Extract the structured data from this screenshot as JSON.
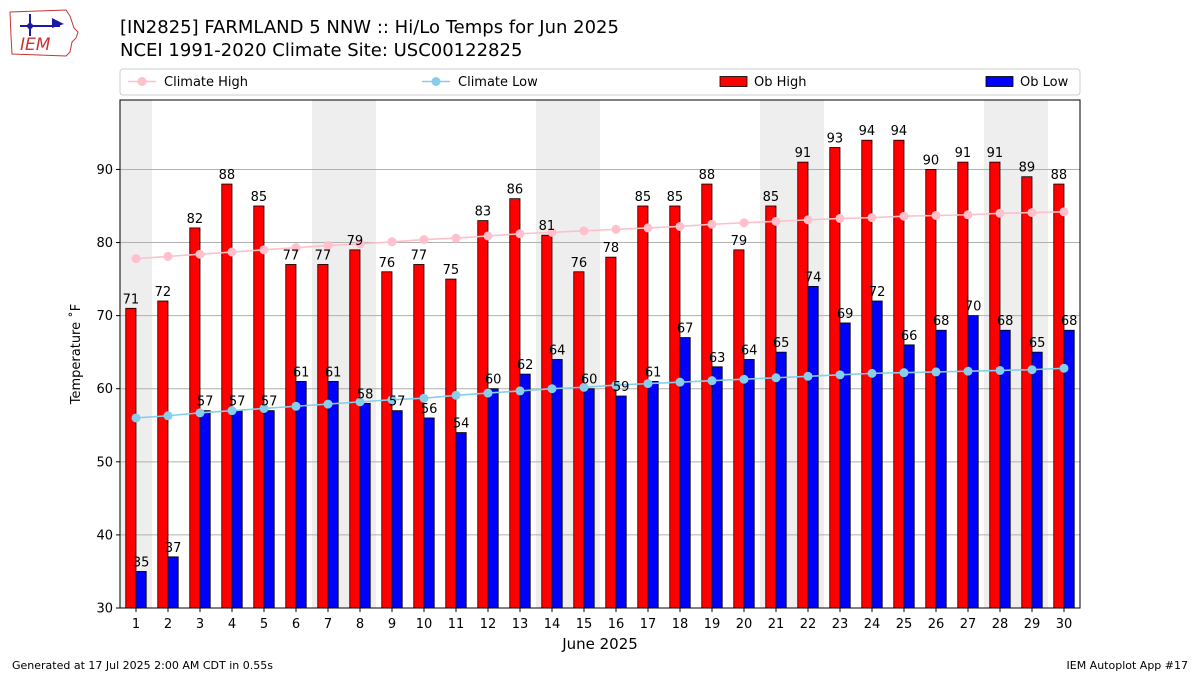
{
  "header": {
    "logo_text": "IEM",
    "title_line1": "[IN2825] FARMLAND 5 NNW :: Hi/Lo Temps for Jun 2025",
    "title_line2": "NCEI 1991-2020 Climate Site: USC00122825"
  },
  "footer": {
    "generated": "Generated at 17 Jul 2025 2:00 AM CDT in 0.55s",
    "app": "IEM Autoplot App #17"
  },
  "colors": {
    "ob_high": "#ff0000",
    "ob_low": "#0000ff",
    "climate_high": "#ffc0cb",
    "climate_low": "#87ceeb",
    "weekend_band": "#eeeeee",
    "grid": "#b0b0b0"
  },
  "chart_data": {
    "type": "bar",
    "xlabel": "June 2025",
    "ylabel": "Temperature ˚F",
    "ylim": [
      30,
      99.5
    ],
    "yticks": [
      30,
      40,
      50,
      60,
      70,
      80,
      90
    ],
    "grid": "horizontal",
    "legend_position": "top",
    "categories": [
      "1",
      "2",
      "3",
      "4",
      "5",
      "6",
      "7",
      "8",
      "9",
      "10",
      "11",
      "12",
      "13",
      "14",
      "15",
      "16",
      "17",
      "18",
      "19",
      "20",
      "21",
      "22",
      "23",
      "24",
      "25",
      "26",
      "27",
      "28",
      "29",
      "30"
    ],
    "shaded_days": [
      1,
      7,
      8,
      14,
      15,
      21,
      22,
      28,
      29
    ],
    "series": [
      {
        "name": "Ob High",
        "kind": "bar",
        "values": [
          71,
          72,
          82,
          88,
          85,
          77,
          77,
          79,
          76,
          77,
          75,
          83,
          86,
          81,
          76,
          78,
          85,
          85,
          88,
          79,
          85,
          91,
          93,
          94,
          94,
          90,
          91,
          91,
          89,
          88
        ]
      },
      {
        "name": "Ob Low",
        "kind": "bar",
        "values": [
          35,
          37,
          57,
          57,
          57,
          61,
          61,
          58,
          57,
          56,
          54,
          60,
          62,
          64,
          60,
          59,
          61,
          67,
          63,
          64,
          65,
          74,
          69,
          72,
          66,
          68,
          70,
          68,
          65,
          68
        ]
      },
      {
        "name": "Climate High",
        "kind": "line",
        "values": [
          77.8,
          78.1,
          78.4,
          78.7,
          79.0,
          79.3,
          79.6,
          79.8,
          80.1,
          80.4,
          80.6,
          80.9,
          81.2,
          81.4,
          81.6,
          81.8,
          82.0,
          82.2,
          82.5,
          82.7,
          82.9,
          83.1,
          83.3,
          83.4,
          83.6,
          83.7,
          83.8,
          84.0,
          84.1,
          84.2
        ]
      },
      {
        "name": "Climate Low",
        "kind": "line",
        "values": [
          56.0,
          56.3,
          56.7,
          57.0,
          57.3,
          57.6,
          57.9,
          58.2,
          58.5,
          58.7,
          59.1,
          59.4,
          59.7,
          60.0,
          60.2,
          60.5,
          60.7,
          60.9,
          61.1,
          61.3,
          61.5,
          61.7,
          61.9,
          62.1,
          62.2,
          62.3,
          62.4,
          62.5,
          62.6,
          62.8
        ]
      }
    ]
  }
}
